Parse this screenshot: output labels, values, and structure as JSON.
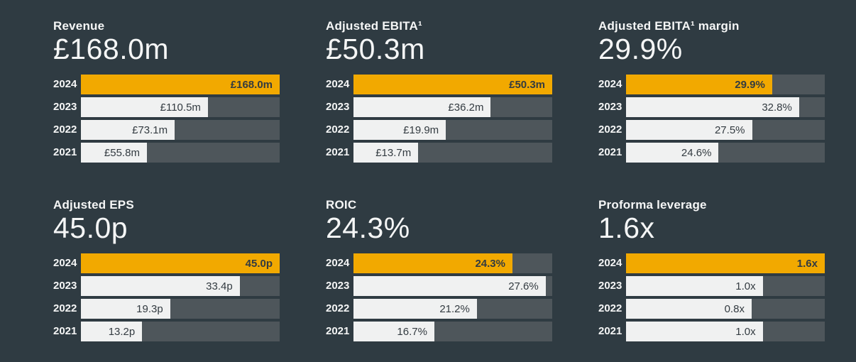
{
  "theme": {
    "background": "#2f3b42",
    "track": "#4e565b",
    "bar_light": "#f0f1f1",
    "bar_accent": "#f2a900",
    "text_light": "#f5f6f6",
    "text_dark": "#333b41"
  },
  "chart_data": [
    {
      "type": "bar",
      "title": "Revenue",
      "headline": "£168.0m",
      "categories": [
        "2024",
        "2023",
        "2022",
        "2021"
      ],
      "values": [
        168.0,
        110.5,
        73.1,
        55.8
      ],
      "labels": [
        "£168.0m",
        "£110.5m",
        "£73.1m",
        "£55.8m"
      ],
      "unit": "£m",
      "highlight_category": "2024",
      "bar_fractions": [
        1.0,
        0.639,
        0.472,
        0.332
      ],
      "legend": "none",
      "grid": false
    },
    {
      "type": "bar",
      "title": "Adjusted EBITA¹",
      "headline": "£50.3m",
      "categories": [
        "2024",
        "2023",
        "2022",
        "2021"
      ],
      "values": [
        50.3,
        36.2,
        19.9,
        13.7
      ],
      "labels": [
        "£50.3m",
        "£36.2m",
        "£19.9m",
        "£13.7m"
      ],
      "unit": "£m",
      "highlight_category": "2024",
      "bar_fractions": [
        1.0,
        0.691,
        0.465,
        0.326
      ],
      "legend": "none",
      "grid": false
    },
    {
      "type": "bar",
      "title": "Adjusted EBITA¹ margin",
      "headline": "29.9%",
      "categories": [
        "2024",
        "2023",
        "2022",
        "2021"
      ],
      "values": [
        29.9,
        32.8,
        27.5,
        24.6
      ],
      "labels": [
        "29.9%",
        "32.8%",
        "27.5%",
        "24.6%"
      ],
      "unit": "%",
      "highlight_category": "2024",
      "bar_fractions": [
        0.735,
        0.871,
        0.634,
        0.466
      ],
      "legend": "none",
      "grid": false
    },
    {
      "type": "bar",
      "title": "Adjusted EPS",
      "headline": "45.0p",
      "categories": [
        "2024",
        "2023",
        "2022",
        "2021"
      ],
      "values": [
        45.0,
        33.4,
        19.3,
        13.2
      ],
      "labels": [
        "45.0p",
        "33.4p",
        "19.3p",
        "13.2p"
      ],
      "unit": "p",
      "highlight_category": "2024",
      "bar_fractions": [
        1.0,
        0.799,
        0.449,
        0.308
      ],
      "legend": "none",
      "grid": false
    },
    {
      "type": "bar",
      "title": "ROIC",
      "headline": "24.3%",
      "categories": [
        "2024",
        "2023",
        "2022",
        "2021"
      ],
      "values": [
        24.3,
        27.6,
        21.2,
        16.7
      ],
      "labels": [
        "24.3%",
        "27.6%",
        "21.2%",
        "16.7%"
      ],
      "unit": "%",
      "highlight_category": "2024",
      "bar_fractions": [
        0.8,
        0.967,
        0.621,
        0.407
      ],
      "legend": "none",
      "grid": false
    },
    {
      "type": "bar",
      "title": "Proforma leverage",
      "headline": "1.6x",
      "categories": [
        "2024",
        "2023",
        "2022",
        "2021"
      ],
      "values": [
        1.6,
        1.0,
        0.8,
        1.0
      ],
      "labels": [
        "1.6x",
        "1.0x",
        "0.8x",
        "1.0x"
      ],
      "unit": "x",
      "highlight_category": "2024",
      "bar_fractions": [
        1.0,
        0.688,
        0.632,
        0.688
      ],
      "legend": "none",
      "grid": false
    }
  ]
}
